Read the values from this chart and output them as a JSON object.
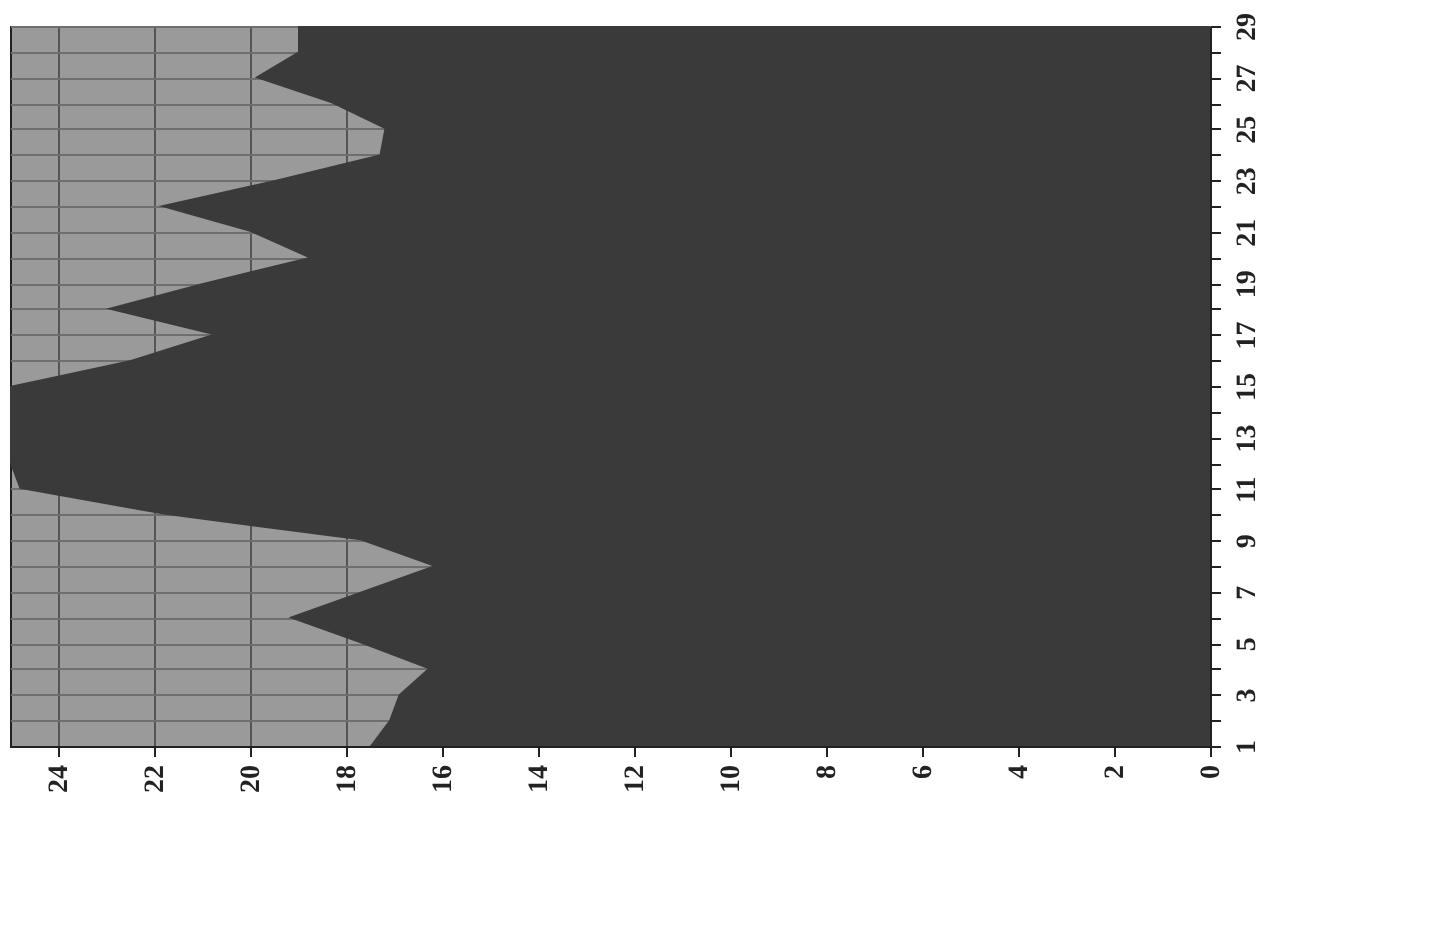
{
  "chart_data": {
    "type": "area",
    "orientation": "horizontal",
    "categories": [
      "29",
      null,
      "27",
      null,
      "25",
      null,
      "23",
      null,
      "21",
      null,
      "19",
      null,
      "17",
      null,
      "15",
      null,
      "13",
      null,
      "11",
      null,
      "9",
      null,
      "7",
      null,
      "5",
      null,
      "3",
      null,
      "1"
    ],
    "values": [
      19.0,
      19.0,
      19.9,
      18.3,
      17.2,
      17.3,
      19.5,
      21.9,
      20.0,
      18.8,
      21.0,
      23.0,
      20.8,
      22.5,
      25,
      25,
      25,
      25,
      24.8,
      21.8,
      17.7,
      16.2,
      17.7,
      19.2,
      17.7,
      16.3,
      16.9,
      17.1,
      17.5
    ],
    "color": "#3a3a3a",
    "xlim": [
      25,
      0
    ],
    "xticks": [
      24,
      22,
      20,
      18,
      16,
      14,
      12,
      10,
      8,
      6,
      4,
      2,
      0
    ],
    "grid": true
  }
}
